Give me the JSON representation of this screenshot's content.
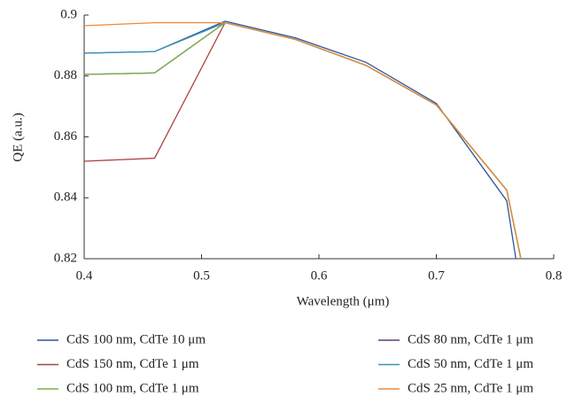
{
  "chart_data": {
    "type": "line",
    "x_label": "Wavelength (μm)",
    "y_label": "QE (a.u.)",
    "x": [
      0.4,
      0.46,
      0.52,
      0.58,
      0.64,
      0.7,
      0.76,
      0.78
    ],
    "series": [
      {
        "name": "CdS 100 nm, CdTe 10 μm",
        "color": "#2f5597",
        "values": [
          0.8875,
          0.888,
          0.898,
          0.8925,
          0.8845,
          0.871,
          0.839,
          0.79
        ]
      },
      {
        "name": "CdS 80 nm, CdTe 1 μm",
        "color": "#5b3f7a",
        "values": [
          0.8805,
          0.881,
          0.8975,
          0.892,
          0.8835,
          0.8705,
          0.8425,
          0.805
        ]
      },
      {
        "name": "CdS 150 nm, CdTe 1 μm",
        "color": "#b0413e",
        "values": [
          0.852,
          0.853,
          0.8975,
          0.892,
          0.8835,
          0.8705,
          0.8425,
          0.805
        ]
      },
      {
        "name": "CdS 50 nm, CdTe 1 μm",
        "color": "#3a93b8",
        "values": [
          0.8875,
          0.888,
          0.8975,
          0.892,
          0.8835,
          0.8705,
          0.8425,
          0.805
        ]
      },
      {
        "name": "CdS 100 nm, CdTe 1 μm",
        "color": "#7fb04a",
        "values": [
          0.8805,
          0.881,
          0.8975,
          0.892,
          0.8835,
          0.8705,
          0.8425,
          0.805
        ]
      },
      {
        "name": "CdS 25 nm, CdTe 1 μm",
        "color": "#ea8a3c",
        "values": [
          0.8965,
          0.8975,
          0.8975,
          0.892,
          0.8835,
          0.8705,
          0.8425,
          0.805
        ]
      }
    ],
    "xlim": [
      0.4,
      0.8
    ],
    "xticks": [
      0.4,
      0.5,
      0.6,
      0.7,
      0.8
    ],
    "ylim": [
      0.82,
      0.9
    ],
    "yticks": [
      0.82,
      0.84,
      0.86,
      0.88,
      0.9
    ]
  }
}
